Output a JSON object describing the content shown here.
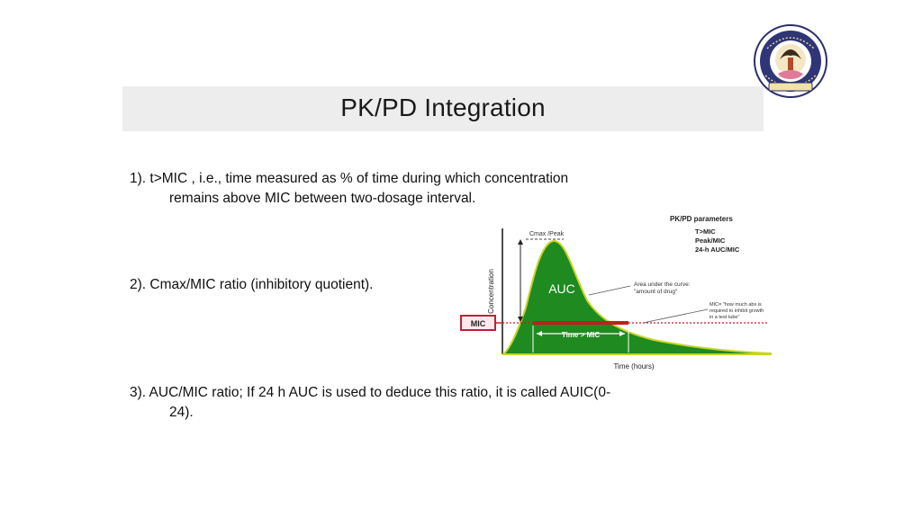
{
  "slide": {
    "title": "PK/PD Integration",
    "point1_line1": "1). t>MIC , i.e., time measured as % of time during which concentration",
    "point1_line2": "remains above MIC between two-dosage interval.",
    "point2": "2).  Cmax/MIC ratio (inhibitory quotient).",
    "point3_line1": "3). AUC/MIC ratio; If 24 h AUC is used to deduce this  ratio, it is called AUIC(0-",
    "point3_line2": "24)."
  },
  "figure": {
    "panel_title": "PK/PD parameters",
    "param1": "T>MIC",
    "param2": "Peak/MIC",
    "param3": "24-h AUC/MIC",
    "cmax_label": "Cmax /Peak",
    "auc_label": "AUC",
    "auc_note_line1": "Area under the curve:",
    "auc_note_line2": "\"amount of drug\"",
    "mic_note_line1": "MIC= \"how much abx is",
    "mic_note_line2": "required to inhibit growth",
    "mic_note_line3": "in a test tube\"",
    "mic_box_label": "MIC",
    "time_above_mic_label": "Time > MIC",
    "y_axis_label": "Concentration",
    "x_axis_label": "Time (hours)",
    "colors": {
      "curve_fill": "#1f8a1f",
      "curve_outline": "#c8d42a",
      "mic_line": "#c21e1e",
      "mic_box": "#c21e3c"
    }
  },
  "logo": {
    "icon": "university-seal-icon"
  }
}
